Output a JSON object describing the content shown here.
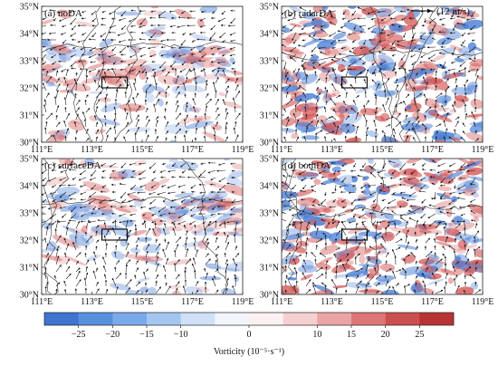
{
  "chart_data": {
    "type": "heatmap",
    "panels": [
      {
        "id": "a",
        "label": "(a)  noDA"
      },
      {
        "id": "b",
        "label": "(b)  radarDA"
      },
      {
        "id": "c",
        "label": "(c)  surfaceDA"
      },
      {
        "id": "d",
        "label": "(d)  bothDA"
      }
    ],
    "x_ticks": [
      "111°E",
      "113°E",
      "115°E",
      "117°E",
      "119°E"
    ],
    "y_ticks": [
      "30°N",
      "31°N",
      "32°N",
      "33°N",
      "34°N",
      "35°N"
    ],
    "xlim": [
      111,
      119
    ],
    "ylim": [
      30,
      35
    ],
    "study_box": {
      "lon": [
        113.4,
        114.4
      ],
      "lat": [
        32.0,
        32.4
      ]
    },
    "reference_vector": {
      "label": "(12 m/s)",
      "value": 12
    },
    "colorbar": {
      "label": "Vorticity (10⁻⁵·s⁻¹)",
      "range": [
        -30,
        30
      ],
      "boundaries": [
        -30,
        -25,
        -20,
        -15,
        -10,
        -5,
        0,
        5,
        10,
        15,
        20,
        25,
        30
      ],
      "tick_labels": [
        "−25",
        "−20",
        "−15",
        "−10",
        "0",
        "10",
        "15",
        "20",
        "25"
      ],
      "tick_values": [
        -25,
        -20,
        -15,
        -10,
        0,
        10,
        15,
        20,
        25
      ],
      "colors": [
        "#3f74cf",
        "#5890e0",
        "#7aaaea",
        "#a4c5f0",
        "#cfe0f7",
        "#f2f6fc",
        "#fbf1f1",
        "#f5d0d0",
        "#eaa4a4",
        "#dd7777",
        "#cc4f4f",
        "#b83434"
      ]
    },
    "colors": {
      "positive": "#d55a5a",
      "negative": "#4a7fd6",
      "vector": "#1a1a1a",
      "border": "#222222"
    }
  }
}
